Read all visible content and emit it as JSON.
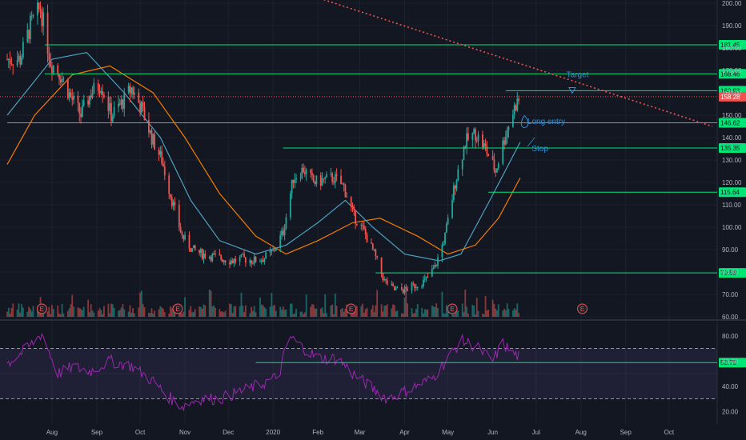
{
  "chart_data": [
    {
      "type": "candlestick",
      "panel": "price",
      "y_axis_ticks": [
        60,
        70,
        80,
        90,
        100,
        110,
        120,
        130,
        140,
        150,
        160,
        170,
        180,
        190,
        200
      ],
      "ylim": [
        60,
        200
      ],
      "x_axis_ticks": [
        "Aug",
        "Sep",
        "Oct",
        "Nov",
        "Dec",
        "2020",
        "Feb",
        "Mar",
        "Apr",
        "May",
        "Jun",
        "Jul",
        "Aug",
        "Sep",
        "Oct"
      ],
      "grid": true,
      "close_path": [
        [
          "2019-07-10",
          175
        ],
        [
          "2019-07-17",
          190
        ],
        [
          "2019-07-24",
          198
        ],
        [
          "2019-07-31",
          174
        ],
        [
          "2019-08-07",
          168
        ],
        [
          "2019-08-14",
          158
        ],
        [
          "2019-08-21",
          150
        ],
        [
          "2019-08-28",
          160
        ],
        [
          "2019-09-04",
          164
        ],
        [
          "2019-09-11",
          150
        ],
        [
          "2019-09-18",
          155
        ],
        [
          "2019-09-25",
          162
        ],
        [
          "2019-10-02",
          153
        ],
        [
          "2019-10-09",
          140
        ],
        [
          "2019-10-16",
          130
        ],
        [
          "2019-10-23",
          112
        ],
        [
          "2019-10-30",
          96
        ],
        [
          "2019-11-06",
          90
        ],
        [
          "2019-11-13",
          88
        ],
        [
          "2019-11-20",
          87
        ],
        [
          "2019-11-27",
          86
        ],
        [
          "2019-12-04",
          85
        ],
        [
          "2019-12-11",
          86
        ],
        [
          "2019-12-18",
          85
        ],
        [
          "2019-12-25",
          86
        ],
        [
          "2020-01-01",
          89
        ],
        [
          "2020-01-08",
          98
        ],
        [
          "2020-01-15",
          122
        ],
        [
          "2020-01-22",
          126
        ],
        [
          "2020-01-29",
          120
        ],
        [
          "2020-02-05",
          121
        ],
        [
          "2020-02-12",
          122
        ],
        [
          "2020-02-19",
          118
        ],
        [
          "2020-02-26",
          105
        ],
        [
          "2020-03-04",
          98
        ],
        [
          "2020-03-11",
          88
        ],
        [
          "2020-03-18",
          76
        ],
        [
          "2020-03-25",
          72
        ],
        [
          "2020-04-01",
          72
        ],
        [
          "2020-04-08",
          74
        ],
        [
          "2020-04-15",
          76
        ],
        [
          "2020-04-22",
          82
        ],
        [
          "2020-04-29",
          96
        ],
        [
          "2020-05-06",
          120
        ],
        [
          "2020-05-13",
          138
        ],
        [
          "2020-05-20",
          142
        ],
        [
          "2020-05-27",
          135
        ],
        [
          "2020-06-03",
          125
        ],
        [
          "2020-06-10",
          142
        ],
        [
          "2020-06-17",
          155
        ],
        [
          "2020-06-21",
          158.28
        ]
      ],
      "horizontal_levels": [
        {
          "label": "181.45",
          "value": 181.45,
          "color": "#00e676",
          "from": "2019-07-27"
        },
        {
          "label": "168.46",
          "value": 168.46,
          "color": "#00e676",
          "from": "2019-07-27"
        },
        {
          "label": "160.93",
          "value": 160.93,
          "color": "#00e676",
          "from": "2020-06-10"
        },
        {
          "label": "146.62",
          "value": 146.62,
          "color": "#00e676",
          "from": "2019-07-01"
        },
        {
          "label": "135.35",
          "value": 135.35,
          "color": "#00e676",
          "from": "2020-01-08"
        },
        {
          "label": "115.64",
          "value": 115.64,
          "color": "#00e676",
          "from": "2020-05-29"
        },
        {
          "label": "79.58",
          "value": 79.58,
          "color": "#00e676",
          "from": "2020-03-12"
        }
      ],
      "last_price": {
        "label": "158.28",
        "value": 158.28,
        "color": "#ef5350"
      },
      "trendline": {
        "from": [
          "2020-01-15",
          206
        ],
        "to": [
          "2020-10-31",
          145
        ],
        "color": "#ef5350",
        "style": "dotted"
      },
      "annotations": [
        {
          "text": "Target",
          "x": "2020-07-22",
          "y": 167
        },
        {
          "text": "Long entry",
          "x": "2020-06-25",
          "y": 146
        },
        {
          "text": "Stop",
          "x": "2020-06-28",
          "y": 134
        }
      ],
      "earnings_markers": [
        {
          "text": "E",
          "x": "2019-07-25"
        },
        {
          "text": "E",
          "x": "2019-10-27"
        },
        {
          "text": "E",
          "x": "2020-02-24"
        },
        {
          "text": "E",
          "x": "2020-05-04"
        },
        {
          "text": "E",
          "x": "2020-08-02"
        }
      ],
      "moving_averages": [
        {
          "color": "#4e9fbf",
          "path": [
            [
              "2019-07-01",
              150
            ],
            [
              "2019-08-01",
              175
            ],
            [
              "2019-08-25",
              178
            ],
            [
              "2019-09-20",
              160
            ],
            [
              "2019-10-15",
              140
            ],
            [
              "2019-11-05",
              112
            ],
            [
              "2019-11-25",
              94
            ],
            [
              "2019-12-20",
              88
            ],
            [
              "2020-01-10",
              92
            ],
            [
              "2020-02-01",
              102
            ],
            [
              "2020-02-20",
              112
            ],
            [
              "2020-03-10",
              100
            ],
            [
              "2020-04-01",
              88
            ],
            [
              "2020-04-25",
              85
            ],
            [
              "2020-05-10",
              88
            ],
            [
              "2020-05-30",
              112
            ],
            [
              "2020-06-20",
              138
            ]
          ]
        },
        {
          "color": "#f57c00",
          "path": [
            [
              "2019-07-01",
              128
            ],
            [
              "2019-07-20",
              150
            ],
            [
              "2019-08-15",
              168
            ],
            [
              "2019-09-10",
              172
            ],
            [
              "2019-10-10",
              160
            ],
            [
              "2019-11-01",
              140
            ],
            [
              "2019-11-25",
              115
            ],
            [
              "2019-12-20",
              96
            ],
            [
              "2020-01-10",
              88
            ],
            [
              "2020-02-01",
              94
            ],
            [
              "2020-02-25",
              102
            ],
            [
              "2020-03-15",
              104
            ],
            [
              "2020-04-10",
              96
            ],
            [
              "2020-05-01",
              88
            ],
            [
              "2020-05-20",
              92
            ],
            [
              "2020-06-05",
              104
            ],
            [
              "2020-06-20",
              122
            ]
          ]
        }
      ],
      "volume_bar_color_up": "#26a69a",
      "volume_bar_color_down": "#ef5350"
    },
    {
      "type": "line",
      "panel": "rsi",
      "y_axis_ticks": [
        20,
        40,
        60,
        80
      ],
      "ylim": [
        10,
        90
      ],
      "bands": [
        30,
        70
      ],
      "levels": [
        {
          "label": "58.75",
          "value": 58.75,
          "color": "#00e676",
          "from": "2019-12-20"
        }
      ],
      "line_color": "#9c27b0",
      "band_color": "#7e57c2",
      "path": [
        [
          "2019-07-01",
          58
        ],
        [
          "2019-07-15",
          70
        ],
        [
          "2019-07-25",
          82
        ],
        [
          "2019-08-05",
          50
        ],
        [
          "2019-08-15",
          55
        ],
        [
          "2019-08-28",
          52
        ],
        [
          "2019-09-10",
          60
        ],
        [
          "2019-09-25",
          56
        ],
        [
          "2019-10-10",
          44
        ],
        [
          "2019-10-20",
          32
        ],
        [
          "2019-10-30",
          24
        ],
        [
          "2019-11-10",
          30
        ],
        [
          "2019-11-25",
          30
        ],
        [
          "2019-12-10",
          36
        ],
        [
          "2019-12-25",
          42
        ],
        [
          "2020-01-05",
          48
        ],
        [
          "2020-01-12",
          80
        ],
        [
          "2020-01-20",
          72
        ],
        [
          "2020-02-01",
          62
        ],
        [
          "2020-02-15",
          62
        ],
        [
          "2020-02-25",
          50
        ],
        [
          "2020-03-10",
          38
        ],
        [
          "2020-03-20",
          30
        ],
        [
          "2020-04-05",
          38
        ],
        [
          "2020-04-20",
          46
        ],
        [
          "2020-05-01",
          62
        ],
        [
          "2020-05-10",
          76
        ],
        [
          "2020-05-20",
          72
        ],
        [
          "2020-06-01",
          60
        ],
        [
          "2020-06-08",
          74
        ],
        [
          "2020-06-15",
          66
        ],
        [
          "2020-06-21",
          62
        ]
      ]
    }
  ]
}
